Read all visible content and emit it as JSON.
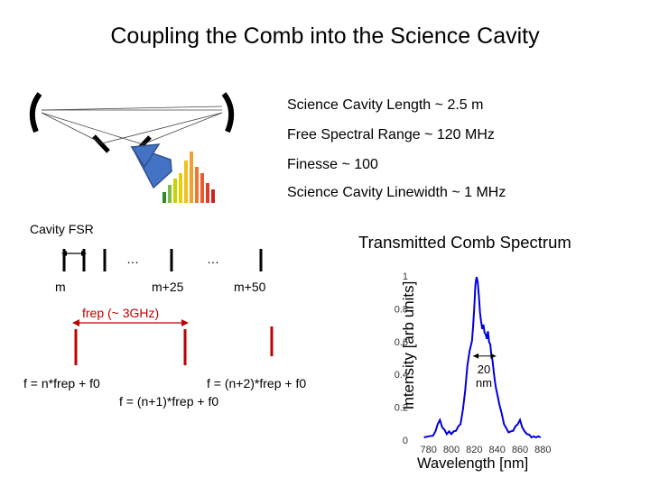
{
  "title": "Coupling the Comb into the Science Cavity",
  "specs": [
    "Science Cavity Length ~ 2.5 m",
    "Free Spectral Range ~ 120 MHz",
    "Finesse ~ 100",
    "Science Cavity Linewidth ~ 1 MHz"
  ],
  "cavity_fsr_label": "Cavity FSR",
  "ellipsis": "…",
  "mode_labels": {
    "m": "m",
    "m25": "m+25",
    "m50": "m+50"
  },
  "frep_label": "frep (~ 3GHz)",
  "formulas": {
    "f0": "f = n*frep + f0",
    "f1": "f = (n+1)*frep + f0",
    "f2": "f = (n+2)*frep + f0"
  },
  "colors": {
    "red": "#c00000",
    "blue": "#0000dd",
    "arrow": "#4472c4"
  },
  "chart_data": {
    "type": "line",
    "title": "Transmitted Comb Spectrum",
    "xlabel": "Wavelength [nm]",
    "ylabel": "Intensity [arb units]",
    "xlim": [
      770,
      890
    ],
    "ylim": [
      0,
      1
    ],
    "x_ticks": [
      "780",
      "800",
      "820",
      "840",
      "860",
      "880"
    ],
    "y_ticks": [
      "0",
      "0.2",
      "0.4",
      "0.6",
      "0.8",
      "1"
    ],
    "annotation": "20 nm",
    "series": [
      {
        "x": [
          776,
          780,
          784,
          786,
          788,
          790,
          792,
          794,
          796,
          798,
          800,
          802,
          804,
          806,
          808,
          810,
          812,
          814,
          816,
          818,
          819,
          820,
          821,
          822,
          823,
          824,
          825,
          826,
          827,
          828,
          829,
          830,
          831,
          832,
          833,
          834,
          835,
          836,
          837,
          838,
          839,
          840,
          842,
          844,
          846,
          848,
          850,
          852,
          854,
          856,
          858,
          860,
          862,
          864,
          866,
          868,
          870,
          872,
          874,
          876,
          878
        ],
        "y": [
          0.02,
          0.02,
          0.03,
          0.05,
          0.1,
          0.12,
          0.08,
          0.06,
          0.04,
          0.05,
          0.04,
          0.05,
          0.06,
          0.08,
          0.1,
          0.18,
          0.3,
          0.45,
          0.55,
          0.6,
          0.7,
          0.8,
          0.95,
          0.99,
          0.97,
          0.88,
          0.78,
          0.72,
          0.68,
          0.7,
          0.66,
          0.64,
          0.62,
          0.66,
          0.6,
          0.58,
          0.52,
          0.48,
          0.42,
          0.36,
          0.32,
          0.28,
          0.22,
          0.16,
          0.1,
          0.07,
          0.05,
          0.05,
          0.06,
          0.08,
          0.1,
          0.12,
          0.08,
          0.05,
          0.04,
          0.03,
          0.02,
          0.02,
          0.02,
          0.02,
          0.02
        ]
      }
    ]
  }
}
